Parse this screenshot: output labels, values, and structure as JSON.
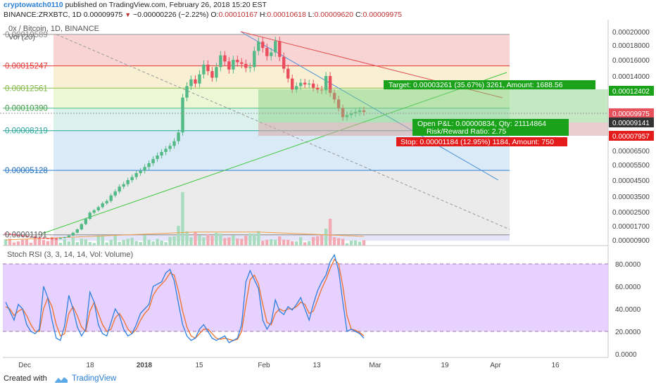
{
  "header": {
    "publisher": "cryptowatch0110",
    "published_text": "published on TradingView.com, February 26, 2018 15:20 EST",
    "symbol": "BINANCE:ZRXBTC, 1D",
    "last": "0.00009975",
    "change": "−0.00000226 (−2.22%)",
    "o_label": "O:",
    "o": "0.00010167",
    "h_label": "H:",
    "h": "0.00010618",
    "l_label": "L:",
    "l": "0.00009620",
    "c_label": "C:",
    "c": "0.00009975"
  },
  "footer": {
    "created_with": "Created with",
    "brand": "TradingView"
  },
  "colors": {
    "up": "#53b987",
    "down": "#eb4d5c",
    "fib_red": "#e53935",
    "fib_green": "#8bc34a",
    "trend_blue": "#4a90d9",
    "trend_green": "#3ec83e",
    "stoch_k": "#2d7fe0",
    "stoch_d": "#f0702a",
    "stoch_band": "#e3ccff"
  },
  "chart_data": [
    {
      "type": "candlestick",
      "title": "0x / Bitcoin, 1D, BINANCE",
      "volume_label": "Vol (20)",
      "yaxis_ticks": [
        "0.00020000",
        "0.00018000",
        "0.00016000",
        "0.00014000",
        "0.00012000",
        "0.00010000",
        "0.00008000",
        "0.00006500",
        "0.00005500",
        "0.00004500",
        "0.00003500",
        "0.00002500",
        "0.00001700",
        "0.00000900"
      ],
      "fib_levels": [
        {
          "label": "0.00019589",
          "value": 0.00019589
        },
        {
          "label": "0.00015247",
          "value": 0.00015247
        },
        {
          "label": "0.00012561",
          "value": 0.00012561
        },
        {
          "label": "0.00010390",
          "value": 0.0001039
        },
        {
          "label": "0.00008219",
          "value": 8.219e-05
        },
        {
          "label": "0.00005128",
          "value": 5.128e-05
        },
        {
          "label": "0.00001191",
          "value": 1.191e-05
        }
      ],
      "price_tags": [
        {
          "label": "0.00012402",
          "kind": "target"
        },
        {
          "label": "0.00009975",
          "kind": "last"
        },
        {
          "label": "0.00009141",
          "kind": "entry"
        },
        {
          "label": "0.00007957",
          "kind": "stop"
        }
      ],
      "position": {
        "target_text": "Target: 0.00003261 (35.67%) 3261, Amount: 1688.56",
        "open_text": "Open P&L: 0.00000834, Qty: 21114864",
        "rr_text": "Risk/Reward Ratio: 2.75",
        "stop_text": "Stop: 0.00001184 (12.95%) 1184, Amount: 750"
      },
      "x_labels": [
        "Dec",
        "18",
        "2018",
        "15",
        "Feb",
        "13",
        "Mar",
        "19",
        "Apr",
        "16"
      ],
      "close": [
        1.25e-05,
        1.22e-05,
        1.18e-05,
        1.15e-05,
        1.12e-05,
        1.08e-05,
        1.06e-05,
        1.03e-05,
        1.01e-05,
        9.9e-06,
        9.8e-06,
        9.7e-06,
        9.6e-06,
        1.01e-05,
        1.06e-05,
        1.15e-05,
        1.31e-05,
        1.5e-05,
        1.8e-05,
        2.1e-05,
        2.45e-05,
        2.6e-05,
        2.8e-05,
        3.05e-05,
        3.2e-05,
        3.55e-05,
        3.8e-05,
        4.1e-05,
        4.25e-05,
        4.5e-05,
        4.7e-05,
        4.95e-05,
        5.1e-05,
        5.35e-05,
        5.6e-05,
        5.9e-05,
        6.15e-05,
        6.4e-05,
        6.65e-05,
        6.9e-05,
        7.3e-05,
        8.05e-05,
        0.000115,
        0.000128,
        0.000136,
        0.000131,
        0.000142,
        0.000154,
        0.000146,
        0.000138,
        0.000151,
        0.000166,
        0.000158,
        0.000148,
        0.00016,
        0.000157,
        0.000155,
        0.00015,
        0.000151,
        0.000172,
        0.000185,
        0.000176,
        0.000165,
        0.00017,
        0.000186,
        0.000164,
        0.000149,
        0.000137,
        0.000124,
        0.000128,
        0.000132,
        0.00013,
        0.000131,
        0.000126,
        0.000124,
        0.000123,
        0.00014,
        0.00012,
        0.000113,
        0.000104,
        9.5e-05,
        9.7e-05,
        9.85e-05,
        9.99e-05,
        0.0001017,
        9.98e-05
      ],
      "volume_note": "Volume histogram (Vol 20) with moving average",
      "stoch_rsi": {
        "title": "Stoch RSI (3, 3, 14, 14, Vol: Volume)",
        "yaxis_ticks": [
          "80.0000",
          "60.0000",
          "40.0000",
          "20.0000",
          "0.0000"
        ],
        "ylim": [
          -5,
          95
        ],
        "bands": [
          20,
          80
        ],
        "k": [
          46,
          38,
          30,
          44,
          40,
          26,
          20,
          18,
          22,
          60,
          50,
          30,
          14,
          12,
          25,
          52,
          40,
          24,
          16,
          22,
          55,
          46,
          26,
          18,
          16,
          28,
          40,
          34,
          22,
          16,
          18,
          26,
          36,
          40,
          44,
          60,
          62,
          64,
          72,
          75,
          65,
          45,
          26,
          16,
          12,
          14,
          22,
          26,
          20,
          14,
          12,
          14,
          16,
          10,
          12,
          14,
          26,
          64,
          74,
          66,
          58,
          30,
          22,
          28,
          48,
          38,
          35,
          42,
          39,
          44,
          50,
          40,
          30,
          44,
          56,
          64,
          70,
          82,
          88,
          74,
          46,
          20,
          22,
          20,
          18,
          14
        ],
        "d": [
          42,
          40,
          34,
          38,
          40,
          34,
          26,
          20,
          20,
          40,
          50,
          42,
          26,
          16,
          18,
          36,
          42,
          34,
          24,
          20,
          38,
          46,
          36,
          26,
          20,
          22,
          32,
          36,
          30,
          22,
          18,
          22,
          30,
          36,
          40,
          52,
          58,
          62,
          66,
          72,
          70,
          56,
          38,
          24,
          16,
          14,
          18,
          22,
          22,
          18,
          14,
          13,
          14,
          13,
          12,
          13,
          20,
          44,
          66,
          70,
          62,
          44,
          28,
          26,
          36,
          40,
          38,
          40,
          40,
          42,
          46,
          44,
          36,
          38,
          48,
          58,
          66,
          76,
          84,
          80,
          60,
          34,
          22,
          21,
          19,
          16
        ]
      }
    }
  ]
}
